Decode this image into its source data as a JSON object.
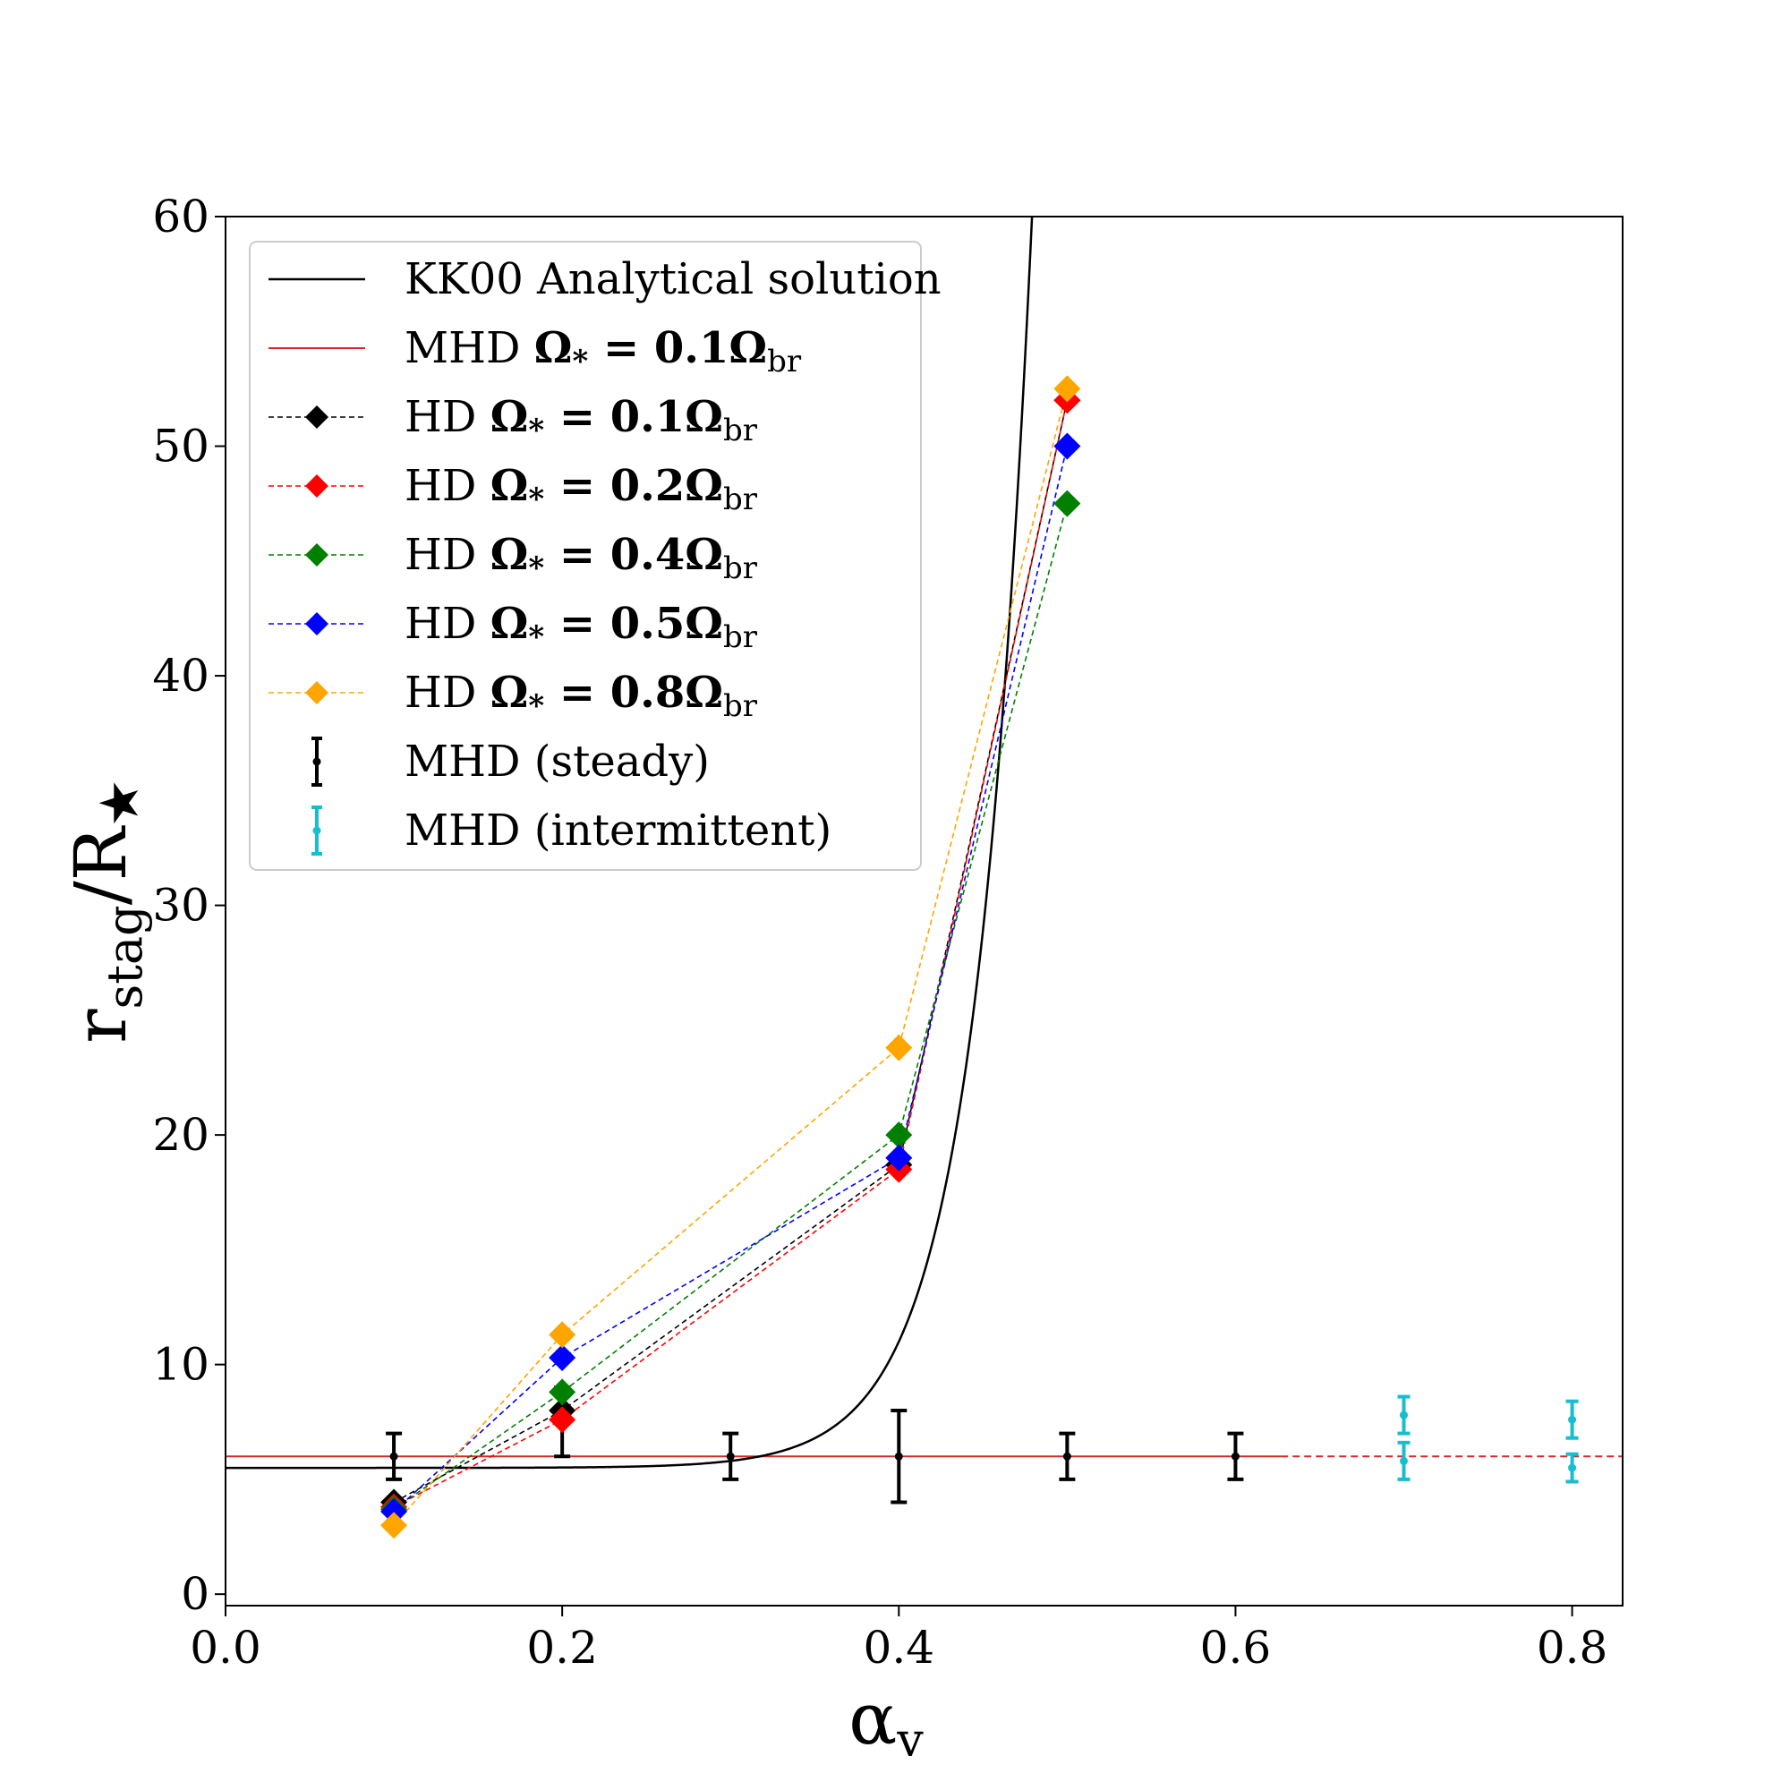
{
  "chart_data": {
    "type": "line",
    "xlabel": "α",
    "xlabel_sub": "v",
    "ylabel": "r",
    "ylabel_sub": "stag",
    "ylabel_rest": "/R",
    "ylabel_star": "★",
    "xlim": [
      0.0,
      0.83
    ],
    "ylim": [
      -0.5,
      60
    ],
    "x_ticks": [
      0.0,
      0.2,
      0.4,
      0.6,
      0.8
    ],
    "x_tick_labels": [
      "0.0",
      "0.2",
      "0.4",
      "0.6",
      "0.8"
    ],
    "y_ticks": [
      0,
      10,
      20,
      30,
      40,
      50,
      60
    ],
    "y_tick_labels": [
      "0",
      "10",
      "20",
      "30",
      "40",
      "50",
      "60"
    ],
    "colors": {
      "analytical": "#000000",
      "mhd_line": "#d62728",
      "hd_01": "#000000",
      "hd_02": "#ff0000",
      "hd_04": "#008000",
      "hd_05": "#0000ff",
      "hd_08": "#ffa500",
      "steady": "#000000",
      "intermittent": "#17becf"
    },
    "analytical": {
      "label": "KK00 Analytical solution",
      "base": 5.5,
      "amplitude": 5.5,
      "x_ref": 0.4,
      "scale": 0.0345,
      "x_start": 0.0,
      "x_end": 0.6
    },
    "mhd_line": {
      "label_prefix": "MHD ",
      "label_math": "Ω",
      "label_sub_star": "*",
      "label_eq": " = 0.1Ω",
      "label_sub": "br",
      "y": 6.0,
      "x_solid": [
        0.0,
        0.627
      ],
      "x_dashed": [
        0.627,
        0.83
      ]
    },
    "hd_series": [
      {
        "key": "hd_01",
        "prefix": "HD ",
        "eq": " = 0.1Ω",
        "x": [
          0.1,
          0.2,
          0.4,
          0.5
        ],
        "y": [
          4.0,
          8.0,
          18.7,
          52.0
        ]
      },
      {
        "key": "hd_02",
        "prefix": "HD ",
        "eq": " = 0.2Ω",
        "x": [
          0.1,
          0.2,
          0.4,
          0.5
        ],
        "y": [
          3.8,
          7.6,
          18.5,
          52.0
        ]
      },
      {
        "key": "hd_04",
        "prefix": "HD ",
        "eq": " = 0.4Ω",
        "x": [
          0.1,
          0.2,
          0.4,
          0.5
        ],
        "y": [
          3.7,
          8.8,
          20.0,
          47.5
        ]
      },
      {
        "key": "hd_05",
        "prefix": "HD ",
        "eq": " = 0.5Ω",
        "x": [
          0.1,
          0.2,
          0.4,
          0.5
        ],
        "y": [
          3.6,
          10.3,
          19.0,
          50.0
        ]
      },
      {
        "key": "hd_08",
        "prefix": "HD ",
        "eq": " = 0.8Ω",
        "x": [
          0.1,
          0.2,
          0.4,
          0.5
        ],
        "y": [
          3.0,
          11.3,
          23.8,
          52.5
        ]
      }
    ],
    "steady": {
      "label": "MHD (steady)",
      "points": [
        {
          "x": 0.1,
          "y": 6.0,
          "lo": 5.0,
          "hi": 7.0
        },
        {
          "x": 0.2,
          "y": 7.5,
          "lo": 6.0,
          "hi": 9.0
        },
        {
          "x": 0.3,
          "y": 6.0,
          "lo": 5.0,
          "hi": 7.0
        },
        {
          "x": 0.4,
          "y": 6.0,
          "lo": 4.0,
          "hi": 8.0
        },
        {
          "x": 0.5,
          "y": 6.0,
          "lo": 5.0,
          "hi": 7.0
        },
        {
          "x": 0.6,
          "y": 6.0,
          "lo": 5.0,
          "hi": 7.0
        }
      ]
    },
    "intermittent": {
      "label": "MHD (intermittent)",
      "points": [
        {
          "x": 0.7,
          "y": 7.8,
          "lo": 7.0,
          "hi": 8.6
        },
        {
          "x": 0.7,
          "y": 5.8,
          "lo": 5.0,
          "hi": 6.6
        },
        {
          "x": 0.8,
          "y": 7.6,
          "lo": 6.8,
          "hi": 8.4
        },
        {
          "x": 0.8,
          "y": 5.5,
          "lo": 4.9,
          "hi": 6.1
        }
      ]
    },
    "legend_position": "upper-left"
  }
}
